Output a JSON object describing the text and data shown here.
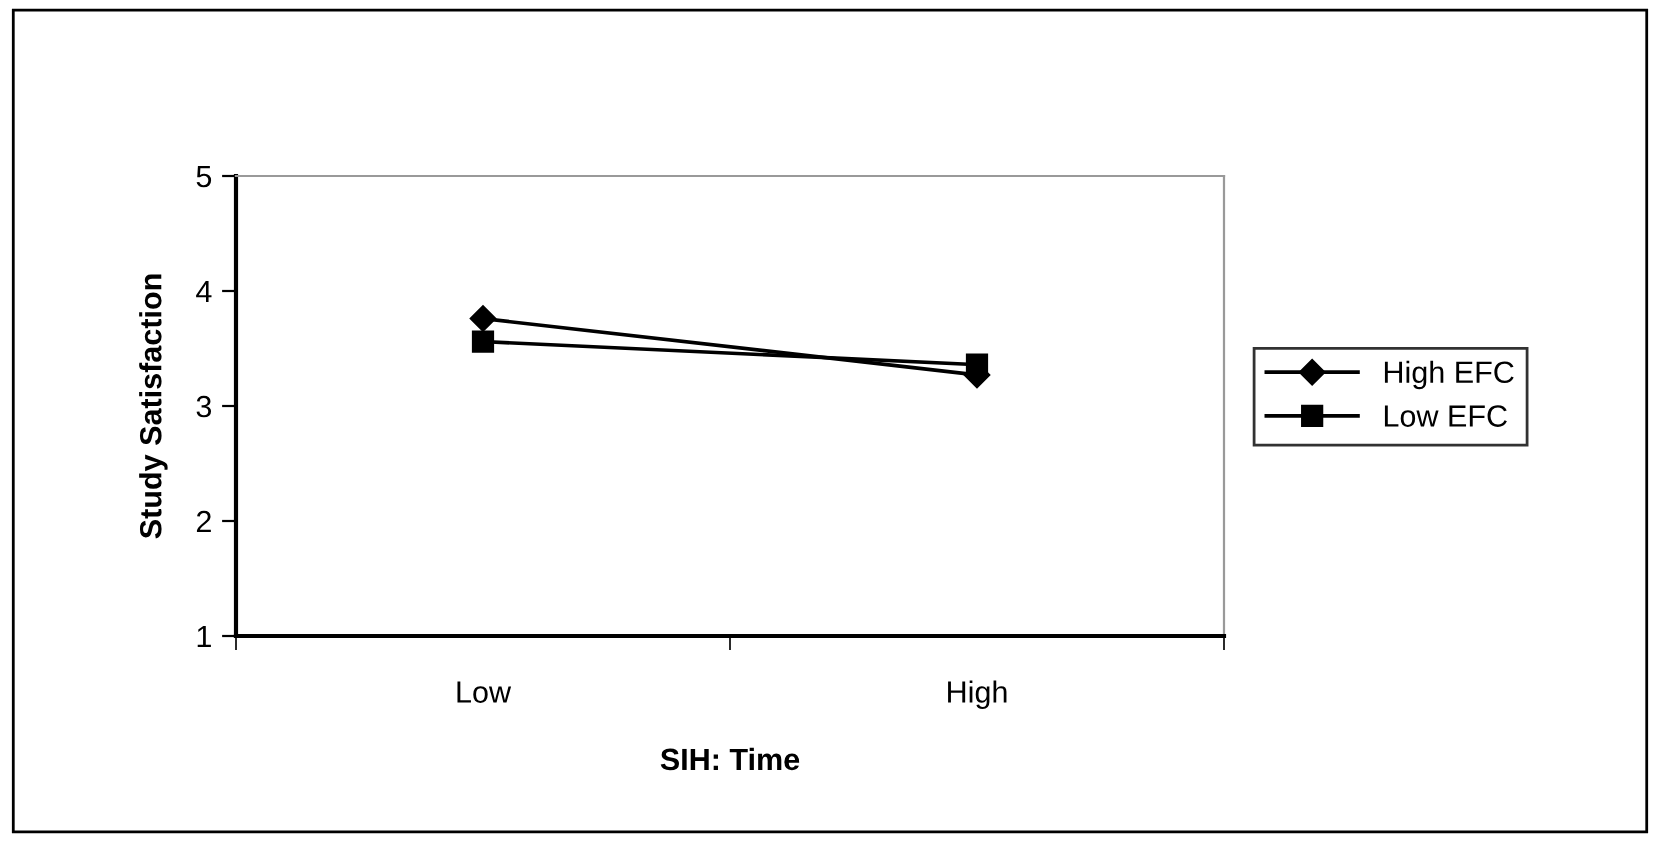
{
  "chart_data": {
    "type": "line",
    "xlabel": "SIH: Time",
    "ylabel": "Study Satisfaction",
    "categories": [
      "Low",
      "High"
    ],
    "series": [
      {
        "name": "High EFC",
        "color": "#000000",
        "values": [
          3.76,
          3.27
        ],
        "marker": "diamond"
      },
      {
        "name": "Low EFC",
        "color": "#000000",
        "values": [
          3.56,
          3.36
        ],
        "marker": "square"
      }
    ],
    "ylim": [
      1,
      5
    ],
    "yticks": [
      1,
      2,
      3,
      4,
      5
    ],
    "grid": false,
    "legend": "right",
    "line_style": "solid"
  }
}
